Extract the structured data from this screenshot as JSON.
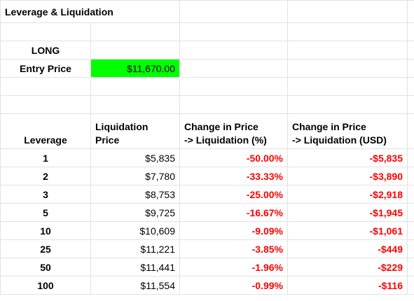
{
  "title": "Leverage & Liquidation",
  "position_label": "LONG",
  "entry": {
    "label": "Entry Price",
    "value": "$11,670.00",
    "color": "#00ff00"
  },
  "headers": {
    "leverage": "Leverage",
    "liq_price_line1": "Liquidation",
    "liq_price_line2": "Price",
    "change_pct_line1": "Change in Price",
    "change_pct_line2": "-> Liquidation (%)",
    "change_usd_line1": "Change in Price",
    "change_usd_line2": "-> Liquidation (USD)"
  },
  "accent_negative": "#ff0000",
  "rows": [
    {
      "leverage": "1",
      "liq_price": "$5,835",
      "change_pct": "-50.00%",
      "change_usd": "-$5,835"
    },
    {
      "leverage": "2",
      "liq_price": "$7,780",
      "change_pct": "-33.33%",
      "change_usd": "-$3,890"
    },
    {
      "leverage": "3",
      "liq_price": "$8,753",
      "change_pct": "-25.00%",
      "change_usd": "-$2,918"
    },
    {
      "leverage": "5",
      "liq_price": "$9,725",
      "change_pct": "-16.67%",
      "change_usd": "-$1,945"
    },
    {
      "leverage": "10",
      "liq_price": "$10,609",
      "change_pct": "-9.09%",
      "change_usd": "-$1,061"
    },
    {
      "leverage": "25",
      "liq_price": "$11,221",
      "change_pct": "-3.85%",
      "change_usd": "-$449"
    },
    {
      "leverage": "50",
      "liq_price": "$11,441",
      "change_pct": "-1.96%",
      "change_usd": "-$229"
    },
    {
      "leverage": "100",
      "liq_price": "$11,554",
      "change_pct": "-0.99%",
      "change_usd": "-$116"
    }
  ]
}
